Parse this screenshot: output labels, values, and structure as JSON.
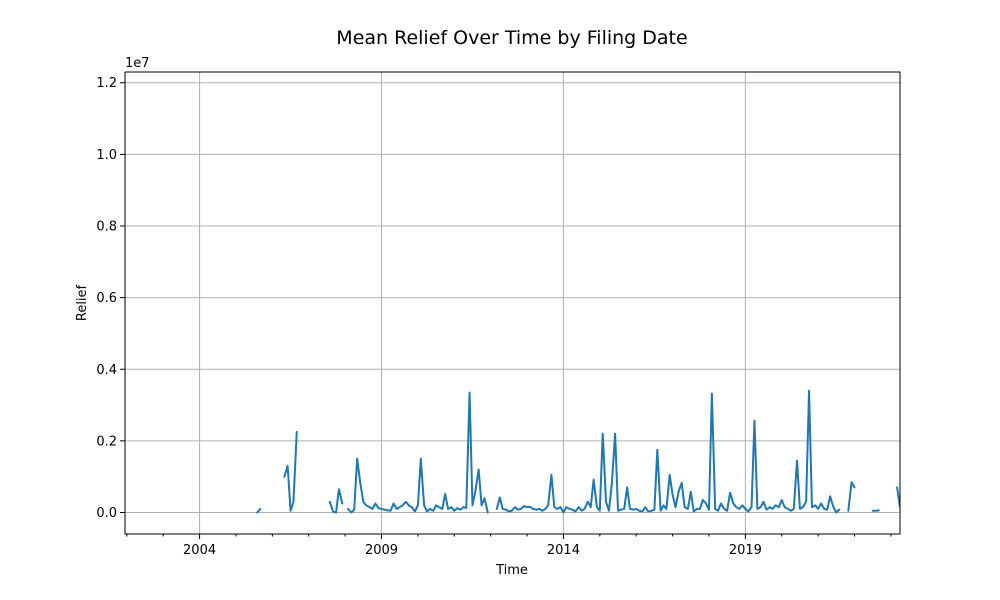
{
  "chart_data": {
    "type": "line",
    "title": "Mean Relief Over Time by Filing Date",
    "xlabel": "Time",
    "ylabel": "Relief",
    "y_multiplier_label": "1e7",
    "xlim": [
      2001.95,
      2023.25
    ],
    "ylim": [
      -600000,
      12300000
    ],
    "x_ticks": [
      2004,
      2009,
      2014,
      2019
    ],
    "x_tick_labels": [
      "2004",
      "2009",
      "2014",
      "2019"
    ],
    "y_ticks": [
      0,
      2000000,
      4000000,
      6000000,
      8000000,
      10000000,
      12000000
    ],
    "y_tick_labels": [
      "0.0",
      "0.2",
      "0.4",
      "0.6",
      "0.8",
      "1.0",
      "1.2"
    ],
    "grid": true,
    "series": [
      {
        "color": "#1f77b4",
        "segments": [
          [
            [
              2005.58,
              0
            ],
            [
              2005.67,
              100000
            ]
          ],
          [
            [
              2006.33,
              1000000
            ],
            [
              2006.42,
              1300000
            ],
            [
              2006.5,
              50000
            ],
            [
              2006.58,
              300000
            ],
            [
              2006.67,
              2250000
            ]
          ],
          [
            [
              2007.58,
              300000
            ],
            [
              2007.67,
              20000
            ],
            [
              2007.75,
              0
            ],
            [
              2007.83,
              650000
            ],
            [
              2007.92,
              250000
            ]
          ],
          [
            [
              2008.08,
              100000
            ],
            [
              2008.17,
              0
            ],
            [
              2008.25,
              80000
            ],
            [
              2008.33,
              1500000
            ],
            [
              2008.42,
              800000
            ],
            [
              2008.5,
              300000
            ],
            [
              2008.58,
              200000
            ],
            [
              2008.67,
              150000
            ],
            [
              2008.75,
              100000
            ],
            [
              2008.83,
              250000
            ],
            [
              2008.92,
              120000
            ],
            [
              2009.0,
              100000
            ],
            [
              2009.08,
              80000
            ],
            [
              2009.17,
              60000
            ],
            [
              2009.25,
              50000
            ],
            [
              2009.33,
              250000
            ],
            [
              2009.42,
              100000
            ],
            [
              2009.5,
              150000
            ],
            [
              2009.58,
              200000
            ],
            [
              2009.67,
              300000
            ],
            [
              2009.75,
              200000
            ],
            [
              2009.83,
              150000
            ],
            [
              2009.92,
              30000
            ],
            [
              2010.0,
              200000
            ],
            [
              2010.08,
              1500000
            ],
            [
              2010.17,
              200000
            ],
            [
              2010.25,
              30000
            ],
            [
              2010.33,
              100000
            ],
            [
              2010.42,
              50000
            ],
            [
              2010.5,
              200000
            ],
            [
              2010.58,
              150000
            ],
            [
              2010.67,
              100000
            ],
            [
              2010.75,
              520000
            ],
            [
              2010.83,
              100000
            ],
            [
              2010.92,
              150000
            ],
            [
              2011.0,
              50000
            ],
            [
              2011.08,
              120000
            ],
            [
              2011.17,
              80000
            ],
            [
              2011.25,
              150000
            ],
            [
              2011.33,
              130000
            ],
            [
              2011.42,
              3350000
            ],
            [
              2011.5,
              200000
            ],
            [
              2011.58,
              600000
            ],
            [
              2011.67,
              1200000
            ],
            [
              2011.75,
              200000
            ],
            [
              2011.83,
              400000
            ],
            [
              2011.92,
              0
            ]
          ],
          [
            [
              2012.17,
              100000
            ],
            [
              2012.25,
              420000
            ],
            [
              2012.33,
              100000
            ],
            [
              2012.42,
              80000
            ],
            [
              2012.5,
              30000
            ],
            [
              2012.58,
              50000
            ],
            [
              2012.67,
              150000
            ],
            [
              2012.75,
              80000
            ],
            [
              2012.83,
              100000
            ],
            [
              2012.92,
              180000
            ],
            [
              2013.0,
              150000
            ],
            [
              2013.08,
              160000
            ],
            [
              2013.17,
              100000
            ],
            [
              2013.25,
              80000
            ],
            [
              2013.33,
              100000
            ],
            [
              2013.42,
              50000
            ],
            [
              2013.5,
              100000
            ],
            [
              2013.58,
              200000
            ],
            [
              2013.67,
              1050000
            ],
            [
              2013.75,
              150000
            ],
            [
              2013.83,
              100000
            ],
            [
              2013.92,
              150000
            ],
            [
              2014.0,
              0
            ],
            [
              2014.08,
              150000
            ],
            [
              2014.17,
              100000
            ],
            [
              2014.25,
              80000
            ],
            [
              2014.33,
              30000
            ],
            [
              2014.42,
              150000
            ],
            [
              2014.5,
              50000
            ],
            [
              2014.58,
              100000
            ],
            [
              2014.67,
              300000
            ],
            [
              2014.75,
              150000
            ],
            [
              2014.83,
              920000
            ],
            [
              2014.92,
              150000
            ],
            [
              2015.0,
              50000
            ],
            [
              2015.08,
              2200000
            ],
            [
              2015.17,
              300000
            ],
            [
              2015.25,
              50000
            ],
            [
              2015.33,
              800000
            ],
            [
              2015.42,
              2200000
            ],
            [
              2015.5,
              50000
            ],
            [
              2015.58,
              80000
            ],
            [
              2015.67,
              100000
            ],
            [
              2015.75,
              700000
            ],
            [
              2015.83,
              100000
            ],
            [
              2015.92,
              80000
            ],
            [
              2016.0,
              100000
            ],
            [
              2016.08,
              50000
            ],
            [
              2016.17,
              30000
            ],
            [
              2016.25,
              150000
            ],
            [
              2016.33,
              30000
            ],
            [
              2016.42,
              50000
            ],
            [
              2016.5,
              80000
            ],
            [
              2016.58,
              1750000
            ],
            [
              2016.67,
              50000
            ],
            [
              2016.75,
              200000
            ],
            [
              2016.83,
              100000
            ],
            [
              2016.92,
              1050000
            ],
            [
              2017.0,
              500000
            ],
            [
              2017.08,
              150000
            ],
            [
              2017.17,
              600000
            ],
            [
              2017.25,
              830000
            ],
            [
              2017.33,
              150000
            ],
            [
              2017.42,
              100000
            ],
            [
              2017.5,
              580000
            ],
            [
              2017.58,
              30000
            ],
            [
              2017.67,
              100000
            ],
            [
              2017.75,
              100000
            ],
            [
              2017.83,
              350000
            ],
            [
              2017.92,
              250000
            ],
            [
              2018.0,
              80000
            ],
            [
              2018.08,
              3320000
            ],
            [
              2018.17,
              100000
            ],
            [
              2018.25,
              50000
            ],
            [
              2018.33,
              250000
            ],
            [
              2018.42,
              100000
            ],
            [
              2018.5,
              50000
            ],
            [
              2018.58,
              550000
            ],
            [
              2018.67,
              250000
            ],
            [
              2018.75,
              150000
            ],
            [
              2018.83,
              100000
            ],
            [
              2018.92,
              200000
            ],
            [
              2019.0,
              100000
            ],
            [
              2019.08,
              30000
            ],
            [
              2019.17,
              150000
            ],
            [
              2019.25,
              2570000
            ],
            [
              2019.33,
              100000
            ],
            [
              2019.42,
              150000
            ],
            [
              2019.5,
              300000
            ],
            [
              2019.58,
              80000
            ],
            [
              2019.67,
              150000
            ],
            [
              2019.75,
              100000
            ],
            [
              2019.83,
              200000
            ],
            [
              2019.92,
              150000
            ],
            [
              2020.0,
              350000
            ],
            [
              2020.08,
              150000
            ],
            [
              2020.17,
              100000
            ],
            [
              2020.25,
              50000
            ],
            [
              2020.33,
              100000
            ],
            [
              2020.42,
              1450000
            ],
            [
              2020.5,
              100000
            ],
            [
              2020.58,
              150000
            ],
            [
              2020.67,
              300000
            ],
            [
              2020.75,
              3400000
            ],
            [
              2020.83,
              150000
            ],
            [
              2020.92,
              200000
            ],
            [
              2021.0,
              100000
            ],
            [
              2021.08,
              250000
            ],
            [
              2021.17,
              100000
            ],
            [
              2021.25,
              80000
            ],
            [
              2021.33,
              450000
            ],
            [
              2021.42,
              150000
            ],
            [
              2021.5,
              0
            ],
            [
              2021.58,
              80000
            ]
          ],
          [
            [
              2021.83,
              50000
            ],
            [
              2021.92,
              850000
            ],
            [
              2022.0,
              700000
            ]
          ],
          [
            [
              2022.5,
              50000
            ],
            [
              2022.58,
              50000
            ],
            [
              2022.67,
              60000
            ]
          ],
          [
            [
              2023.17,
              700000
            ],
            [
              2023.25,
              150000
            ]
          ]
        ]
      }
    ]
  }
}
